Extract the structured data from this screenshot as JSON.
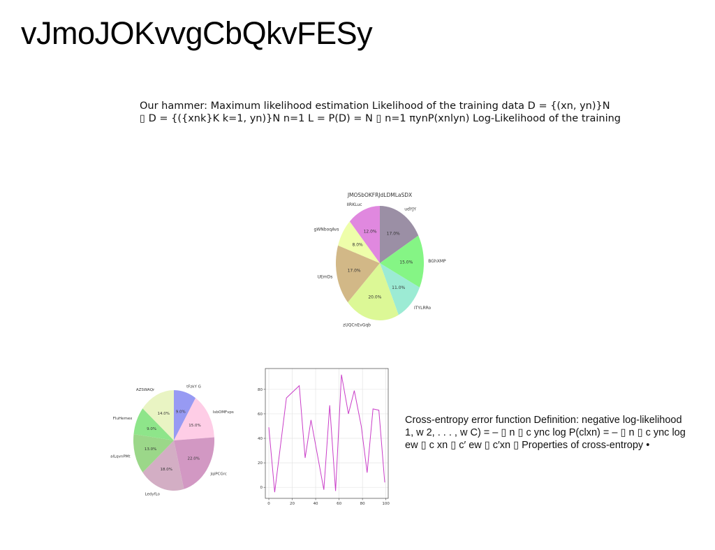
{
  "slide": {
    "title": "vJmoJOKvvgCbQkvFESy",
    "paragraph1_line1": "Our hammer: Maximum likelihood estimation Likelihood of the training data D = {(xn, yn)}N",
    "paragraph1_line2": "▯ D = {({xnk}K k=1, yn)}N n=1 L = P(D) = N ▯ n=1 πynP(xnlyn) Log-Likelihood of the training",
    "paragraph2_line1": "Cross-entropy error function Definition: negative log-likelihood",
    "paragraph2_line2": "1, w 2, . . . , w C) = – ▯ n ▯ c ync log P(clxn) = – ▯ n ▯ c ync log",
    "paragraph2_line3": "ew ▯ c xn ▯ c′ ew ▯ c′xn ▯ Properties of cross-entropy •"
  },
  "chart_data": [
    {
      "type": "pie",
      "title": "JMOSbOKFRJdLDMLaSDX",
      "labels": [
        "udYJY",
        "BGhXMP",
        "ITYLRRo",
        "zUQCnEvGqb",
        "UEmDs",
        "gWNboqAvs",
        "IIRKLuc"
      ],
      "values": [
        17.0,
        15.0,
        11.0,
        20.0,
        17.0,
        8.0,
        12.0
      ],
      "value_labels": [
        "17.0%",
        "15.0%",
        "11.0%",
        "20.0%",
        "17.0%",
        "8.0%",
        "12.0%"
      ],
      "colors": [
        "#9b8fa5",
        "#85f585",
        "#9cebd4",
        "#dcf896",
        "#d2b887",
        "#eefeaa",
        "#e088df"
      ],
      "start_angle": 90,
      "direction": "clockwise"
    },
    {
      "type": "pie",
      "title": "",
      "labels": [
        "tFzkY G",
        "IsbOMFvps",
        "JqiPCGrc",
        "LedyfLo",
        "alLqvnPMt",
        "FIuHemex",
        "AZSWAQr"
      ],
      "values": [
        9.0,
        15.0,
        22.0,
        18.0,
        13.0,
        9.0,
        14.0
      ],
      "value_labels": [
        "9.0%",
        "15.0%",
        "22.0%",
        "18.0%",
        "13.0%",
        "9.0%",
        "14.0%"
      ],
      "colors": [
        "#979af3",
        "#fecde6",
        "#d298c3",
        "#d3aec4",
        "#9bd789",
        "#8ee58a",
        "#e9f4c3"
      ],
      "start_angle": 90,
      "direction": "clockwise"
    },
    {
      "type": "line",
      "title": "",
      "x": [
        0,
        5,
        15,
        26,
        31,
        36,
        47,
        52,
        57,
        62,
        68,
        73,
        79,
        84,
        89,
        94,
        99
      ],
      "series": [
        {
          "values": [
            49,
            -4,
            73,
            83,
            24,
            55,
            -2,
            67,
            -3,
            92,
            60,
            79,
            50,
            12,
            64,
            63,
            4
          ]
        }
      ],
      "xticks": [
        0,
        20,
        40,
        60,
        80,
        100
      ],
      "yticks": [
        0,
        20,
        40,
        60,
        80
      ],
      "xlim": [
        -3,
        102
      ],
      "ylim": [
        -9,
        97
      ],
      "grid": true,
      "line_color": "#c93dc8"
    }
  ]
}
